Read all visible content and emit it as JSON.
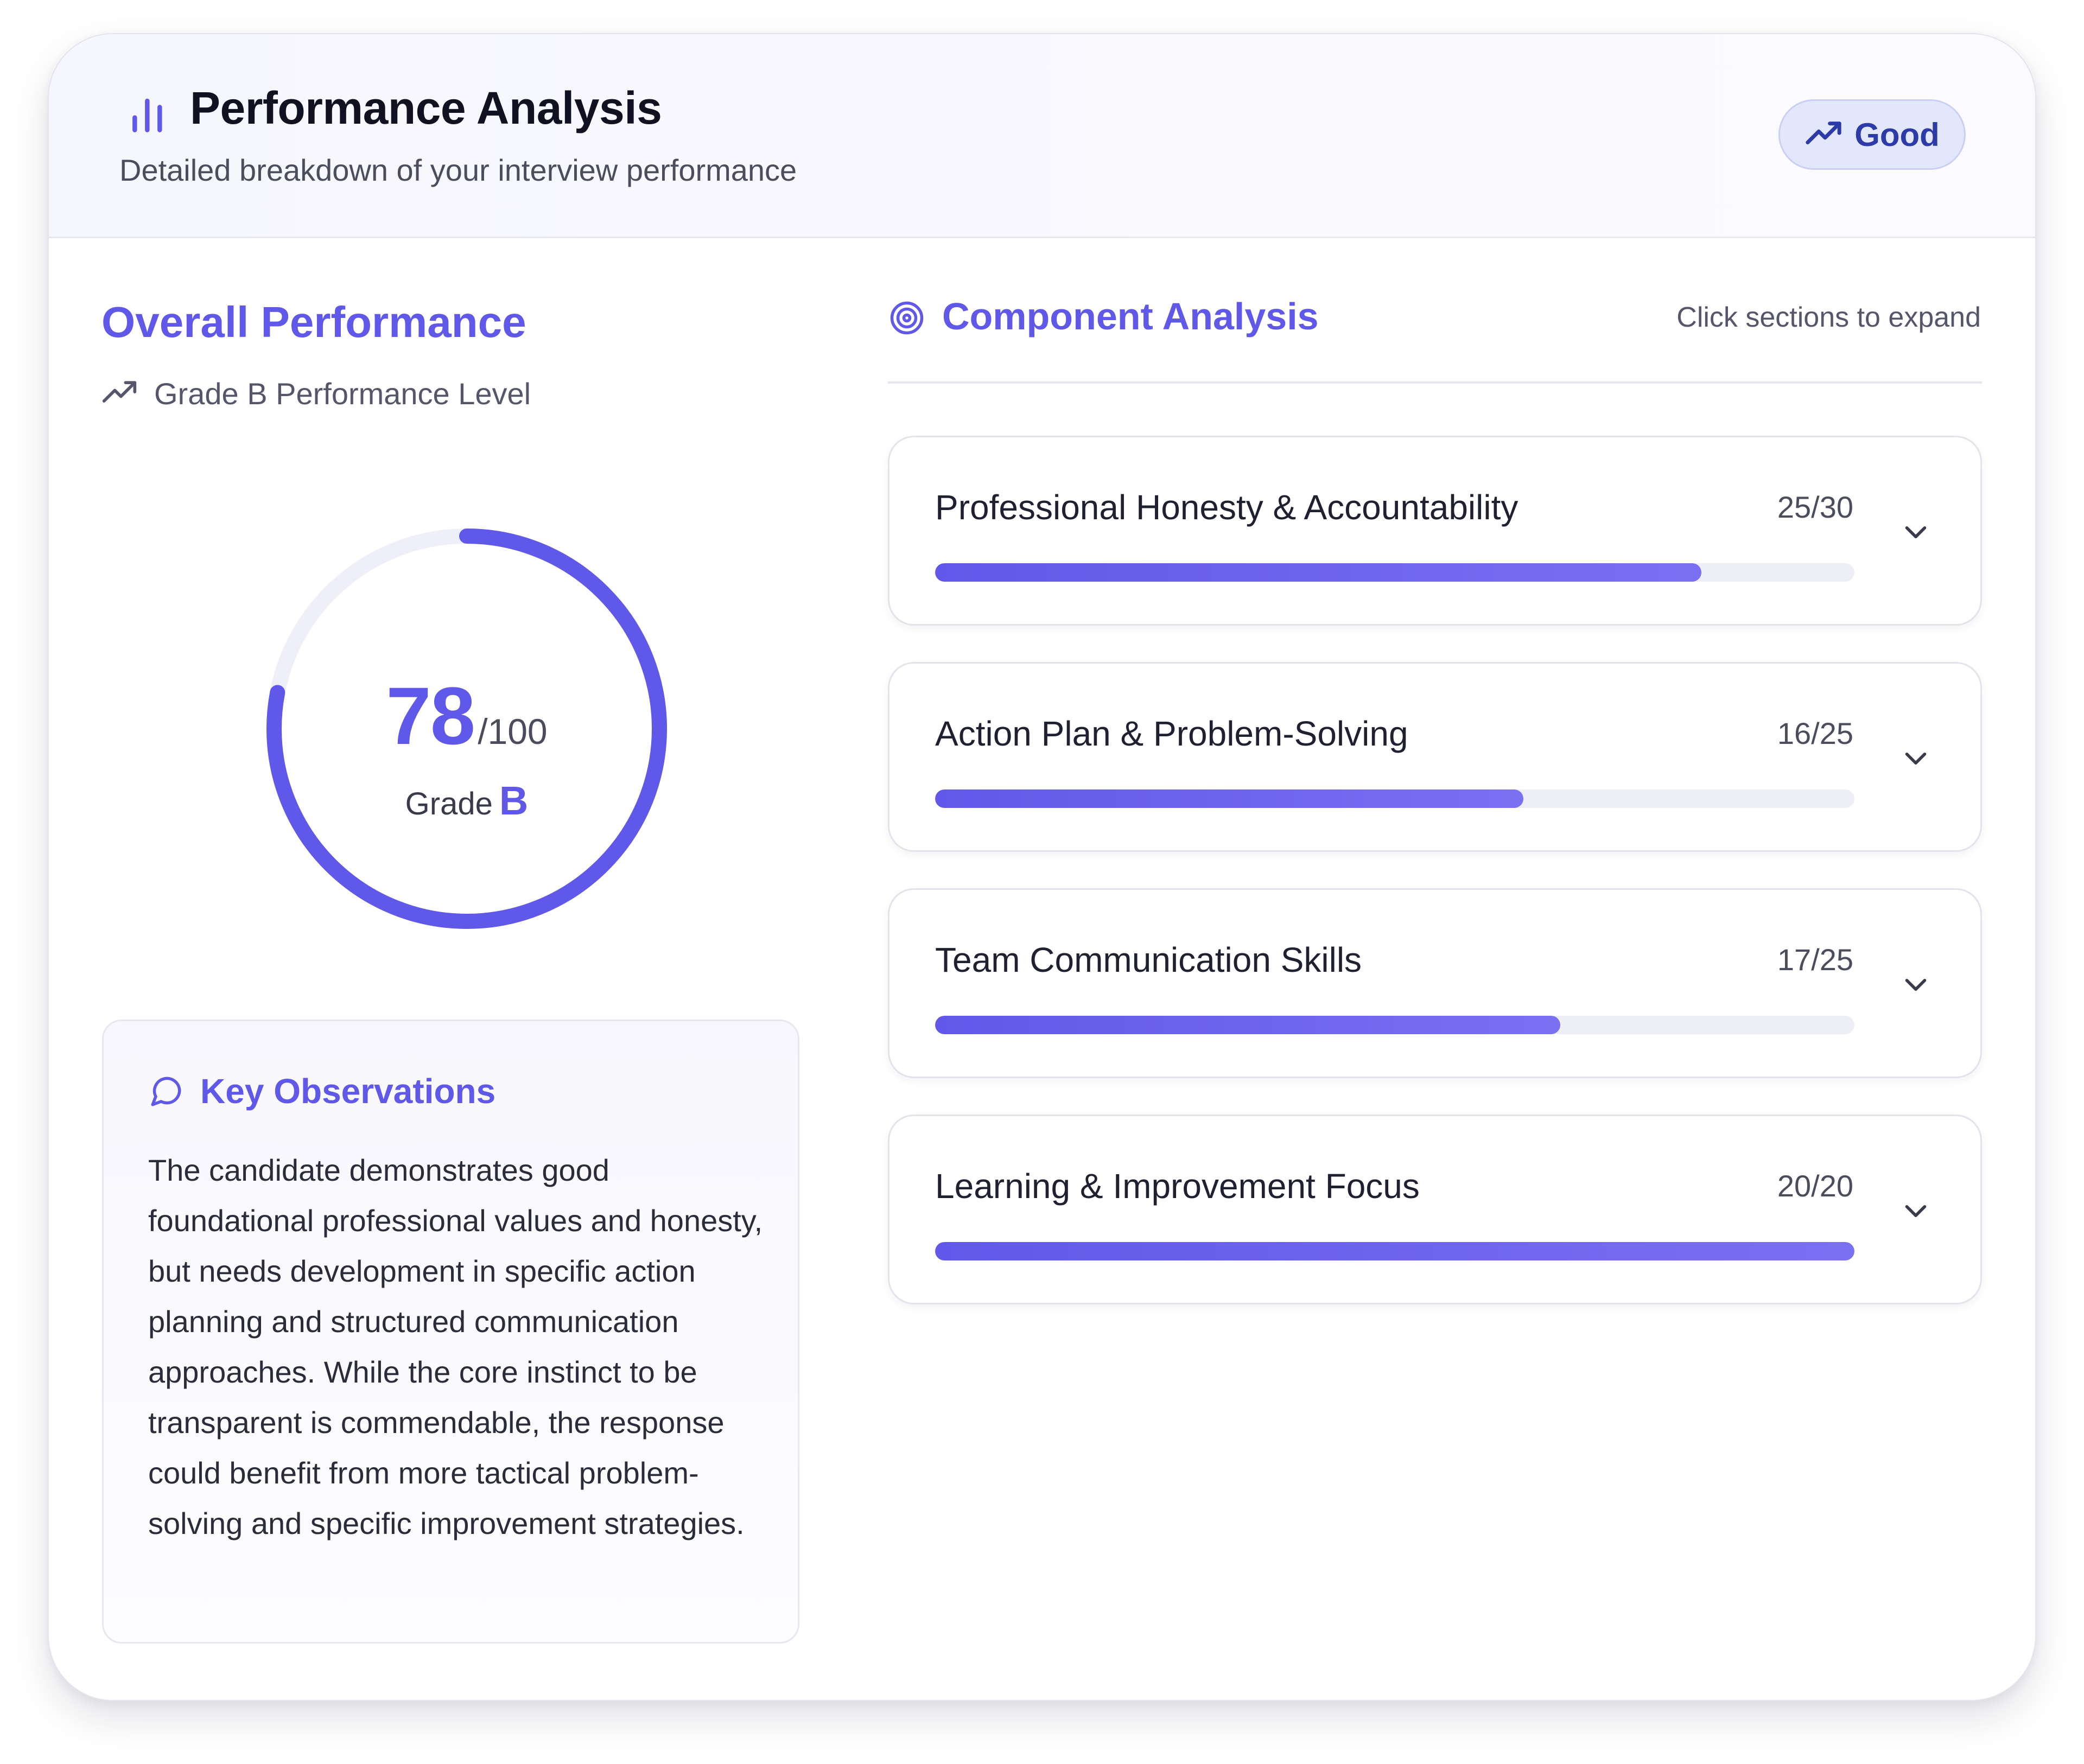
{
  "header": {
    "title": "Performance Analysis",
    "subtitle": "Detailed breakdown of your interview performance",
    "badge_label": "Good",
    "icon": "bar-chart-icon"
  },
  "overall": {
    "title": "Overall Performance",
    "level_text": "Grade B Performance Level",
    "score": "78",
    "score_max": "/100",
    "score_fraction": 0.78,
    "grade_label": "Grade",
    "grade": "B"
  },
  "observations": {
    "title": "Key Observations",
    "text": "The candidate demonstrates good foundational professional values and honesty, but needs development in specific action planning and structured communication approaches. While the core instinct to be transparent is commendable, the response could benefit from more tactical problem-solving and specific improvement strategies."
  },
  "components": {
    "title": "Component Analysis",
    "hint": "Click sections to expand",
    "items": [
      {
        "name": "Professional Honesty & Accountability",
        "score": "25/30",
        "fraction": 0.8333
      },
      {
        "name": "Action Plan & Problem-Solving",
        "score": "16/25",
        "fraction": 0.64
      },
      {
        "name": "Team Communication Skills",
        "score": "17/25",
        "fraction": 0.68
      },
      {
        "name": "Learning & Improvement Focus",
        "score": "20/20",
        "fraction": 1.0
      }
    ]
  },
  "colors": {
    "accent": "#6058e8",
    "badge_bg": "#e3e7fb",
    "badge_text": "#2d3ba8",
    "track": "#eeeef7"
  }
}
